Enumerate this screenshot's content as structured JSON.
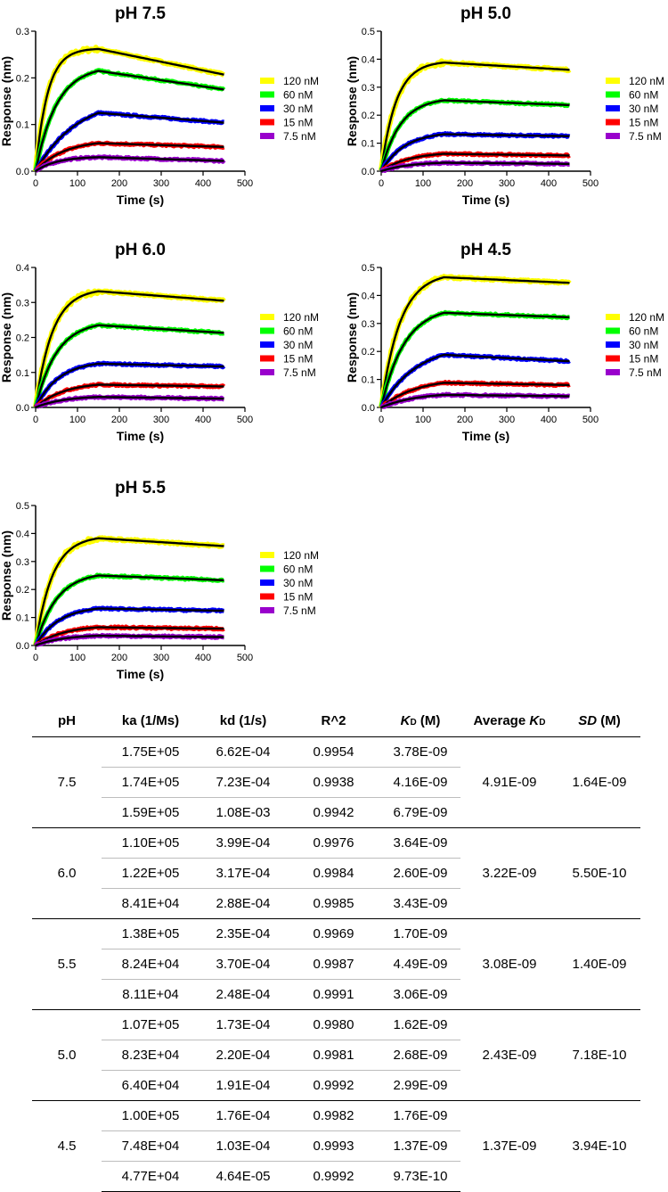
{
  "chart_data": [
    {
      "type": "line",
      "title": "pH 7.5",
      "xlabel": "Time (s)",
      "ylabel": "Response (nm)",
      "xlim": [
        0,
        500
      ],
      "ylim": [
        0,
        0.3
      ],
      "x_ticks": [
        0,
        100,
        200,
        300,
        400,
        500
      ],
      "y_ticks": [
        0.0,
        0.1,
        0.2,
        0.3
      ],
      "y_tick_labels": [
        "0.0",
        "0.1",
        "0.2",
        "0.3"
      ],
      "association_end_s": 150,
      "end_s": 450,
      "series": [
        {
          "name": "120 nM",
          "color": "#ffff00",
          "peak": 0.262,
          "end": 0.207,
          "rate": 0.035
        },
        {
          "name": "60 nM",
          "color": "#00ff00",
          "peak": 0.215,
          "end": 0.175,
          "rate": 0.02
        },
        {
          "name": "30 nM",
          "color": "#0000ff",
          "peak": 0.125,
          "end": 0.104,
          "rate": 0.01
        },
        {
          "name": "15 nM",
          "color": "#ff0000",
          "peak": 0.06,
          "end": 0.052,
          "rate": 0.015
        },
        {
          "name": "7.5 nM",
          "color": "#9900cc",
          "peak": 0.03,
          "end": 0.022,
          "rate": 0.02
        }
      ]
    },
    {
      "type": "line",
      "title": "pH 5.0",
      "xlabel": "Time (s)",
      "ylabel": "Response (nm)",
      "xlim": [
        0,
        500
      ],
      "ylim": [
        0,
        0.5
      ],
      "x_ticks": [
        0,
        100,
        200,
        300,
        400,
        500
      ],
      "y_ticks": [
        0.0,
        0.1,
        0.2,
        0.3,
        0.4,
        0.5
      ],
      "y_tick_labels": [
        "0.0",
        "0.1",
        "0.2",
        "0.3",
        "0.4",
        "0.5"
      ],
      "association_end_s": 150,
      "end_s": 450,
      "series": [
        {
          "name": "120 nM",
          "color": "#ffff00",
          "peak": 0.388,
          "end": 0.362,
          "rate": 0.028
        },
        {
          "name": "60 nM",
          "color": "#00ff00",
          "peak": 0.253,
          "end": 0.236,
          "rate": 0.022
        },
        {
          "name": "30 nM",
          "color": "#0000ff",
          "peak": 0.132,
          "end": 0.125,
          "rate": 0.018
        },
        {
          "name": "15 nM",
          "color": "#ff0000",
          "peak": 0.062,
          "end": 0.056,
          "rate": 0.015
        },
        {
          "name": "7.5 nM",
          "color": "#9900cc",
          "peak": 0.03,
          "end": 0.026,
          "rate": 0.015
        }
      ]
    },
    {
      "type": "line",
      "title": "pH 6.0",
      "xlabel": "Time (s)",
      "ylabel": "Response (nm)",
      "xlim": [
        0,
        500
      ],
      "ylim": [
        0,
        0.4
      ],
      "x_ticks": [
        0,
        100,
        200,
        300,
        400,
        500
      ],
      "y_ticks": [
        0.0,
        0.1,
        0.2,
        0.3,
        0.4
      ],
      "y_tick_labels": [
        "0.0",
        "0.1",
        "0.2",
        "0.3",
        "0.4"
      ],
      "association_end_s": 150,
      "end_s": 450,
      "series": [
        {
          "name": "120 nM",
          "color": "#ffff00",
          "peak": 0.332,
          "end": 0.305,
          "rate": 0.025
        },
        {
          "name": "60 nM",
          "color": "#00ff00",
          "peak": 0.235,
          "end": 0.213,
          "rate": 0.02
        },
        {
          "name": "30 nM",
          "color": "#0000ff",
          "peak": 0.125,
          "end": 0.117,
          "rate": 0.018
        },
        {
          "name": "15 nM",
          "color": "#ff0000",
          "peak": 0.065,
          "end": 0.06,
          "rate": 0.015
        },
        {
          "name": "7.5 nM",
          "color": "#9900cc",
          "peak": 0.03,
          "end": 0.025,
          "rate": 0.015
        }
      ]
    },
    {
      "type": "line",
      "title": "pH 4.5",
      "xlabel": "Time (s)",
      "ylabel": "Response (nm)",
      "xlim": [
        0,
        500
      ],
      "ylim": [
        0,
        0.5
      ],
      "x_ticks": [
        0,
        100,
        200,
        300,
        400,
        500
      ],
      "y_ticks": [
        0.0,
        0.1,
        0.2,
        0.3,
        0.4,
        0.5
      ],
      "y_tick_labels": [
        "0.0",
        "0.1",
        "0.2",
        "0.3",
        "0.4",
        "0.5"
      ],
      "association_end_s": 150,
      "end_s": 450,
      "series": [
        {
          "name": "120 nM",
          "color": "#ffff00",
          "peak": 0.465,
          "end": 0.445,
          "rate": 0.022
        },
        {
          "name": "60 nM",
          "color": "#00ff00",
          "peak": 0.338,
          "end": 0.322,
          "rate": 0.018
        },
        {
          "name": "30 nM",
          "color": "#0000ff",
          "peak": 0.188,
          "end": 0.165,
          "rate": 0.012
        },
        {
          "name": "15 nM",
          "color": "#ff0000",
          "peak": 0.088,
          "end": 0.08,
          "rate": 0.012
        },
        {
          "name": "7.5 nM",
          "color": "#9900cc",
          "peak": 0.045,
          "end": 0.04,
          "rate": 0.012
        }
      ]
    },
    {
      "type": "line",
      "title": "pH 5.5",
      "xlabel": "Time (s)",
      "ylabel": "Response (nm)",
      "xlim": [
        0,
        500
      ],
      "ylim": [
        0,
        0.5
      ],
      "x_ticks": [
        0,
        100,
        200,
        300,
        400,
        500
      ],
      "y_ticks": [
        0.0,
        0.1,
        0.2,
        0.3,
        0.4,
        0.5
      ],
      "y_tick_labels": [
        "0.0",
        "0.1",
        "0.2",
        "0.3",
        "0.4",
        "0.5"
      ],
      "association_end_s": 150,
      "end_s": 450,
      "series": [
        {
          "name": "120 nM",
          "color": "#ffff00",
          "peak": 0.383,
          "end": 0.355,
          "rate": 0.025
        },
        {
          "name": "60 nM",
          "color": "#00ff00",
          "peak": 0.25,
          "end": 0.233,
          "rate": 0.02
        },
        {
          "name": "30 nM",
          "color": "#0000ff",
          "peak": 0.132,
          "end": 0.124,
          "rate": 0.018
        },
        {
          "name": "15 nM",
          "color": "#ff0000",
          "peak": 0.065,
          "end": 0.06,
          "rate": 0.015
        },
        {
          "name": "7.5 nM",
          "color": "#9900cc",
          "peak": 0.035,
          "end": 0.03,
          "rate": 0.015
        }
      ]
    }
  ],
  "table": {
    "headers": {
      "ph": "pH",
      "ka": "ka (1/Ms)",
      "kd": "kd (1/s)",
      "r2": "R^2",
      "kd_m_main": "K",
      "kd_m_sub": "D",
      "kd_m_unit": " (M)",
      "avg_main": "Average ",
      "avg_k": "K",
      "avg_sub": "D",
      "sd_main": "SD",
      "sd_unit": " (M)"
    },
    "groups": [
      {
        "ph": "7.5",
        "average": "4.91E-09",
        "sd": "1.64E-09",
        "rows": [
          {
            "ka": "1.75E+05",
            "kd": "6.62E-04",
            "r2": "0.9954",
            "KD": "3.78E-09"
          },
          {
            "ka": "1.74E+05",
            "kd": "7.23E-04",
            "r2": "0.9938",
            "KD": "4.16E-09"
          },
          {
            "ka": "1.59E+05",
            "kd": "1.08E-03",
            "r2": "0.9942",
            "KD": "6.79E-09"
          }
        ]
      },
      {
        "ph": "6.0",
        "average": "3.22E-09",
        "sd": "5.50E-10",
        "rows": [
          {
            "ka": "1.10E+05",
            "kd": "3.99E-04",
            "r2": "0.9976",
            "KD": "3.64E-09"
          },
          {
            "ka": "1.22E+05",
            "kd": "3.17E-04",
            "r2": "0.9984",
            "KD": "2.60E-09"
          },
          {
            "ka": "8.41E+04",
            "kd": "2.88E-04",
            "r2": "0.9985",
            "KD": "3.43E-09"
          }
        ]
      },
      {
        "ph": "5.5",
        "average": "3.08E-09",
        "sd": "1.40E-09",
        "rows": [
          {
            "ka": "1.38E+05",
            "kd": "2.35E-04",
            "r2": "0.9969",
            "KD": "1.70E-09"
          },
          {
            "ka": "8.24E+04",
            "kd": "3.70E-04",
            "r2": "0.9987",
            "KD": "4.49E-09"
          },
          {
            "ka": "8.11E+04",
            "kd": "2.48E-04",
            "r2": "0.9991",
            "KD": "3.06E-09"
          }
        ]
      },
      {
        "ph": "5.0",
        "average": "2.43E-09",
        "sd": "7.18E-10",
        "rows": [
          {
            "ka": "1.07E+05",
            "kd": "1.73E-04",
            "r2": "0.9980",
            "KD": "1.62E-09"
          },
          {
            "ka": "8.23E+04",
            "kd": "2.20E-04",
            "r2": "0.9981",
            "KD": "2.68E-09"
          },
          {
            "ka": "6.40E+04",
            "kd": "1.91E-04",
            "r2": "0.9992",
            "KD": "2.99E-09"
          }
        ]
      },
      {
        "ph": "4.5",
        "average": "1.37E-09",
        "sd": "3.94E-10",
        "rows": [
          {
            "ka": "1.00E+05",
            "kd": "1.76E-04",
            "r2": "0.9982",
            "KD": "1.76E-09"
          },
          {
            "ka": "7.48E+04",
            "kd": "1.03E-04",
            "r2": "0.9993",
            "KD": "1.37E-09"
          },
          {
            "ka": "4.77E+04",
            "kd": "4.64E-05",
            "r2": "0.9992",
            "KD": "9.73E-10"
          }
        ]
      }
    ]
  }
}
